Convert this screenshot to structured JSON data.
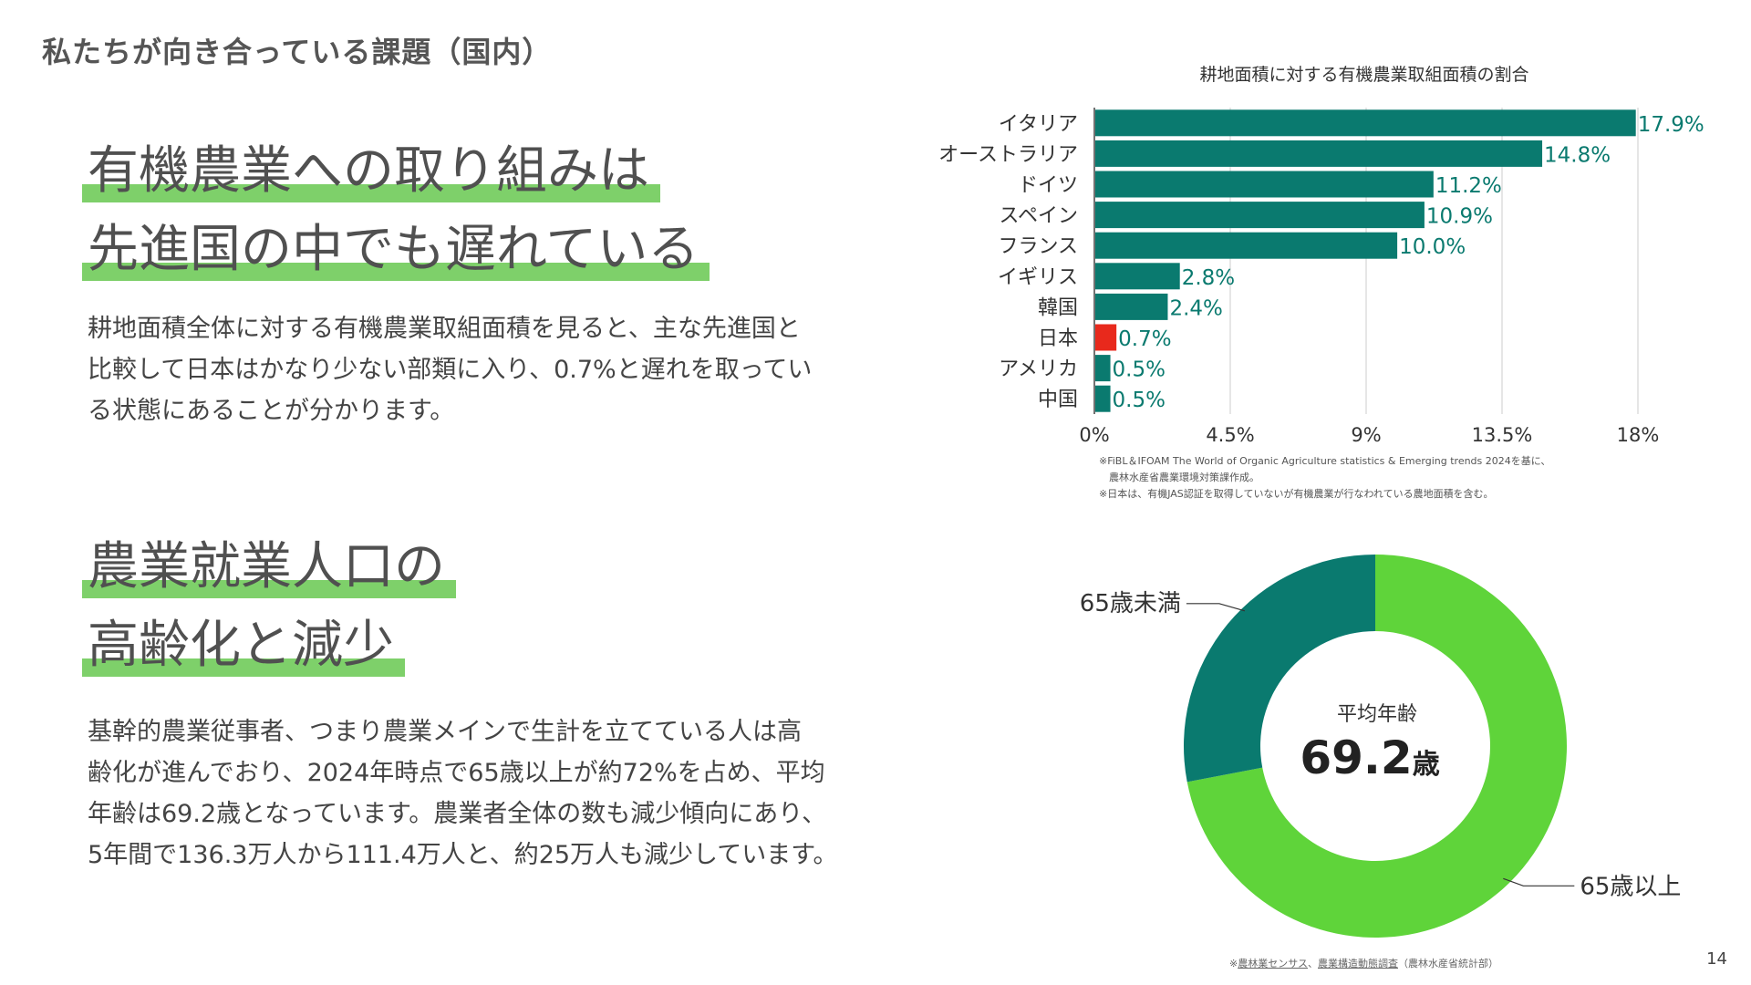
{
  "page": {
    "title": "私たちが向き合っている課題（国内）",
    "page_number": "14"
  },
  "section1": {
    "heading_lines": [
      "有機農業への取り組みは",
      "先進国の中でも遅れている"
    ],
    "body_lines": [
      "耕地面積全体に対する有機農業取組面積を見ると、主な先進国と",
      "比較して日本はかなり少ない部類に入り、0.7%と遅れを取ってい",
      "る状態にあることが分かります。"
    ]
  },
  "section2": {
    "heading_lines": [
      "農業就業人口の",
      "高齢化と減少"
    ],
    "body_lines": [
      "基幹的農業従事者、つまり農業メインで生計を立てている人は高",
      "齢化が進んでおり、2024年時点で65歳以上が約72%を占め、平均",
      "年齢は69.2歳となっています。農業者全体の数も減少傾向にあり、",
      "5年間で136.3万人から111.4万人と、約25万人も減少しています。"
    ]
  },
  "chart_data": [
    {
      "type": "bar",
      "orientation": "horizontal",
      "title": "耕地面積に対する有機農業取組面積の割合",
      "categories": [
        "イタリア",
        "オーストラリア",
        "ドイツ",
        "スペイン",
        "フランス",
        "イギリス",
        "韓国",
        "日本",
        "アメリカ",
        "中国"
      ],
      "values": [
        17.9,
        14.8,
        11.2,
        10.9,
        10.0,
        2.8,
        2.4,
        0.7,
        0.5,
        0.5
      ],
      "value_labels": [
        "17.9%",
        "14.8%",
        "11.2%",
        "10.9%",
        "10.0%",
        "2.8%",
        "2.4%",
        "0.7%",
        "0.5%",
        "0.5%"
      ],
      "xlim": [
        0,
        18
      ],
      "xticks": [
        0,
        4.5,
        9,
        13.5,
        18
      ],
      "xtick_labels": [
        "0%",
        "4.5%",
        "9%",
        "13.5%",
        "18%"
      ],
      "grid": true,
      "colors": {
        "default": "#0a7a6f",
        "highlight": "#e8291c",
        "highlight_category": "日本"
      },
      "notes": [
        "※FiBL＆IFOAM The World of Organic Agriculture statistics & Emerging trends 2024を基に、",
        "　農林水産省農業環境対策課作成。",
        "※日本は、有機JAS認証を取得していないが有機農業が行なわれている農地面積を含む。"
      ]
    },
    {
      "type": "pie",
      "variant": "donut",
      "categories": [
        "65歳以上",
        "65歳未満"
      ],
      "values": [
        72,
        28
      ],
      "colors": [
        "#5fd43a",
        "#0a7a6f"
      ],
      "center_label": "平均年齢",
      "center_value": "69.2",
      "center_unit": "歳"
    }
  ],
  "source": {
    "prefix": "※",
    "link1": "農林業センサス",
    "sep": "、",
    "link2": "農業構造動態調査",
    "suffix": "（農林水産省統計部）"
  }
}
